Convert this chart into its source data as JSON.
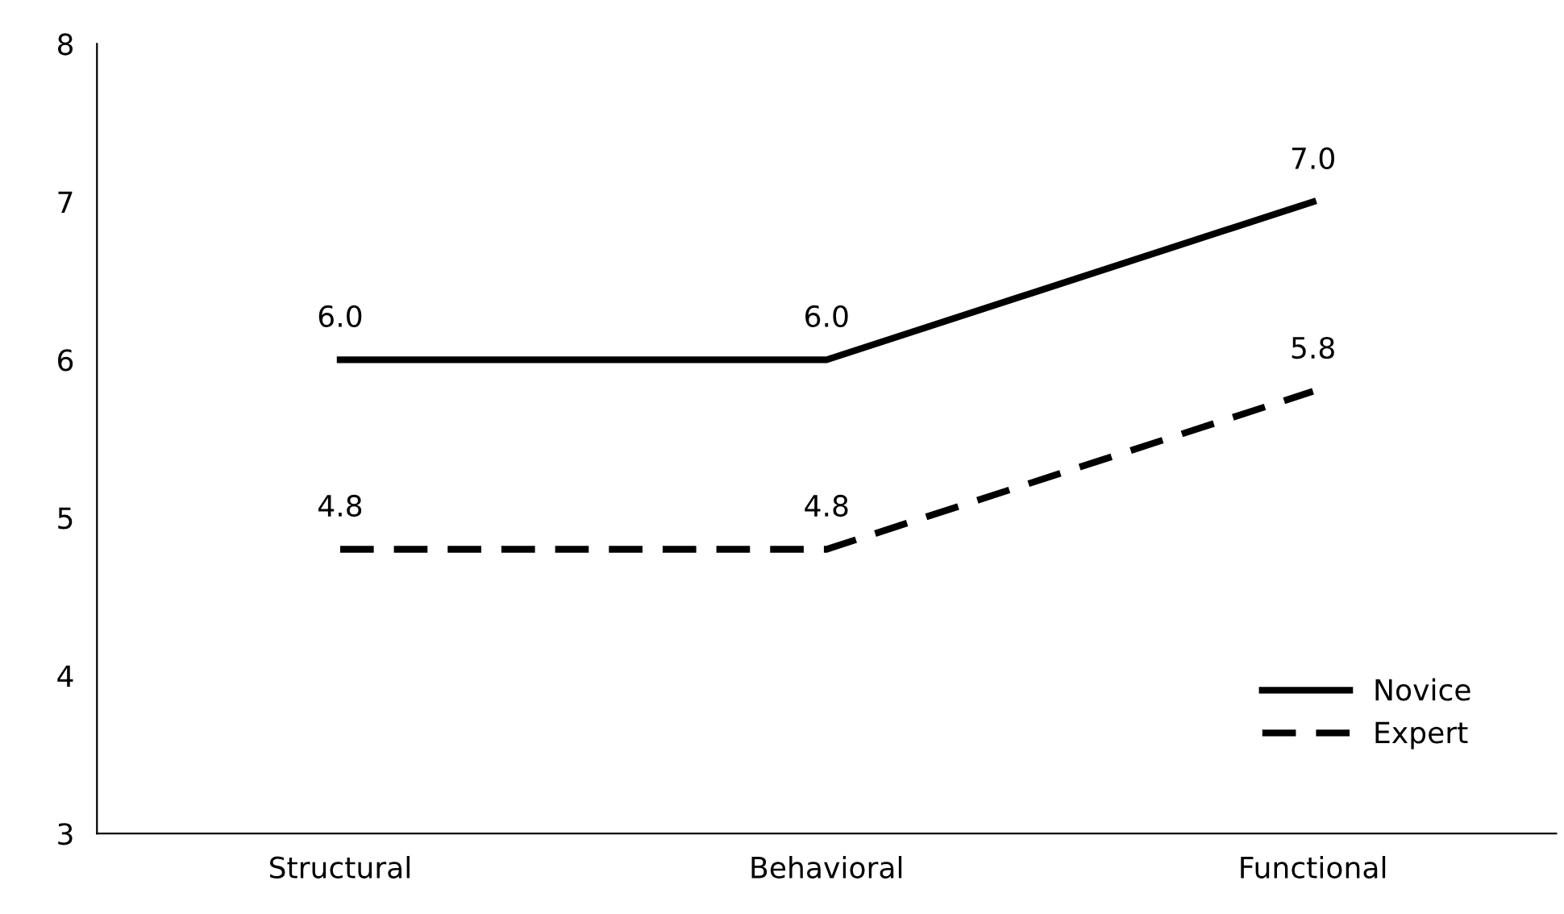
{
  "chart_data": {
    "type": "line",
    "categories": [
      "Structural",
      "Behavioral",
      "Functional"
    ],
    "series": [
      {
        "name": "Novice",
        "color": "#000000",
        "line_style": "solid",
        "values": [
          6.0,
          6.0,
          7.0
        ],
        "value_labels": [
          "6.0",
          "6.0",
          "7.0"
        ]
      },
      {
        "name": "Expert",
        "color": "#000000",
        "line_style": "dashed",
        "values": [
          4.8,
          4.8,
          5.8
        ],
        "value_labels": [
          "4.8",
          "4.8",
          "5.8"
        ]
      }
    ],
    "ylim": [
      3,
      8
    ],
    "yticks": [
      3,
      4,
      5,
      6,
      7,
      8
    ],
    "marker": "none",
    "grid": false,
    "legend": "bottom right"
  }
}
